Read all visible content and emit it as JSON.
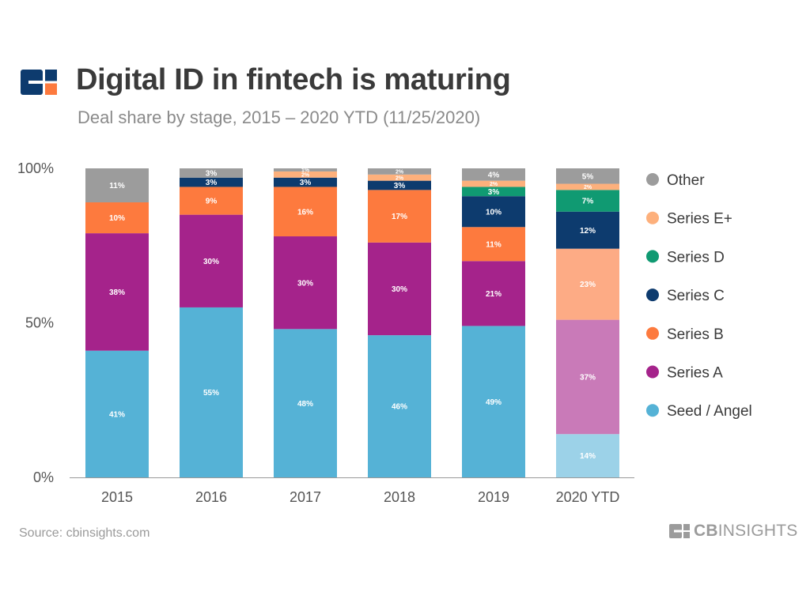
{
  "header": {
    "title": "Digital ID in fintech is maturing",
    "subtitle": "Deal share by stage, 2015 – 2020 YTD (11/25/2020)"
  },
  "footer": {
    "source": "Source: cbinsights.com",
    "brand_bold": "CB",
    "brand_light": "INSIGHTS"
  },
  "icons": {
    "logo": "cb-insights-logo-icon",
    "brand": "cb-insights-mark-icon"
  },
  "colors": {
    "Seed / Angel": "#55b2d6",
    "Series A": "#a5238b",
    "Series B": "#fd7a3e",
    "Series C": "#0d3b6e",
    "Series D": "#109a72",
    "Series E+": "#fdb07c",
    "Other": "#9c9c9c",
    "ytd_Seed / Angel": "#9cd2e8",
    "ytd_Series A": "#c97ab8",
    "ytd_Series B": "#fdab85"
  },
  "chart_data": {
    "type": "bar",
    "stacked": true,
    "title": "Digital ID in fintech is maturing",
    "subtitle": "Deal share by stage, 2015 – 2020 YTD (11/25/2020)",
    "categories": [
      "2015",
      "2016",
      "2017",
      "2018",
      "2019",
      "2020 YTD"
    ],
    "y_ticks": [
      "0%",
      "50%",
      "100%"
    ],
    "ylim": [
      0,
      100
    ],
    "legend_position": "right",
    "series": [
      {
        "name": "Seed / Angel",
        "values": [
          41,
          55,
          48,
          46,
          49,
          14
        ],
        "labels": [
          "41%",
          "55%",
          "48%",
          "46%",
          "49%",
          "14%"
        ]
      },
      {
        "name": "Series A",
        "values": [
          38,
          30,
          30,
          30,
          21,
          37
        ],
        "labels": [
          "38%",
          "30%",
          "30%",
          "30%",
          "21%",
          "37%"
        ]
      },
      {
        "name": "Series B",
        "values": [
          10,
          9,
          16,
          17,
          11,
          23
        ],
        "labels": [
          "10%",
          "9%",
          "16%",
          "17%",
          "11%",
          "23%"
        ]
      },
      {
        "name": "Series C",
        "values": [
          0,
          3,
          3,
          3,
          10,
          12
        ],
        "labels": [
          "",
          "3%",
          "3%",
          "3%",
          "10%",
          "12%"
        ]
      },
      {
        "name": "Series D",
        "values": [
          0,
          0,
          0,
          0,
          3,
          7
        ],
        "labels": [
          "",
          "",
          "",
          "",
          "3%",
          "7%"
        ]
      },
      {
        "name": "Series E+",
        "values": [
          0,
          0,
          2,
          2,
          2,
          2
        ],
        "labels": [
          "",
          "",
          "2%",
          "2%",
          "2%",
          "2%"
        ]
      },
      {
        "name": "Other",
        "values": [
          11,
          3,
          1,
          2,
          4,
          5
        ],
        "labels": [
          "11%",
          "3%",
          "1%",
          "2%",
          "4%",
          "5%"
        ]
      }
    ],
    "legend_order": [
      "Other",
      "Series E+",
      "Series D",
      "Series C",
      "Series B",
      "Series A",
      "Seed / Angel"
    ]
  }
}
